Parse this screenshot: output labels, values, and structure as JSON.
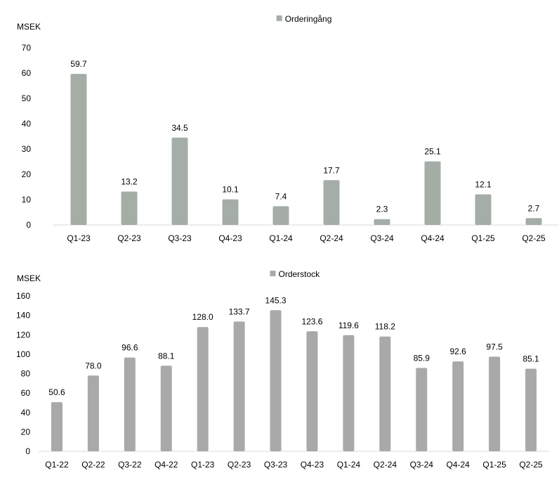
{
  "chart_data": [
    {
      "type": "bar",
      "unit_label": "MSEK",
      "legend": [
        "Orderingång"
      ],
      "legend_position": "top-center",
      "grid": false,
      "categories": [
        "Q1-23",
        "Q2-23",
        "Q3-23",
        "Q4-23",
        "Q1-24",
        "Q2-24",
        "Q3-24",
        "Q4-24",
        "Q1-25",
        "Q2-25"
      ],
      "series": [
        {
          "name": "Orderingång",
          "values": [
            59.7,
            13.2,
            34.5,
            10.1,
            7.4,
            17.7,
            2.3,
            25.1,
            12.1,
            2.7
          ]
        }
      ],
      "data_labels": [
        "59.7",
        "13.2",
        "34.5",
        "10.1",
        "7.4",
        "17.7",
        "2.3",
        "25.1",
        "12.1",
        "2.7"
      ],
      "ylim": [
        0,
        70
      ],
      "yticks": [
        0,
        10,
        20,
        30,
        40,
        50,
        60,
        70
      ],
      "color": "#a5ada7"
    },
    {
      "type": "bar",
      "unit_label": "MSEK",
      "legend": [
        "Orderstock"
      ],
      "legend_position": "top-center",
      "grid": false,
      "categories": [
        "Q1-22",
        "Q2-22",
        "Q3-22",
        "Q4-22",
        "Q1-23",
        "Q2-23",
        "Q3-23",
        "Q4-23",
        "Q1-24",
        "Q2-24",
        "Q3-24",
        "Q4-24",
        "Q1-25",
        "Q2-25"
      ],
      "series": [
        {
          "name": "Orderstock",
          "values": [
            50.6,
            78.0,
            96.6,
            88.1,
            128.0,
            133.7,
            145.3,
            123.6,
            119.6,
            118.2,
            85.9,
            92.6,
            97.5,
            85.1
          ]
        }
      ],
      "data_labels": [
        "50.6",
        "78.0",
        "96.6",
        "88.1",
        "128.0",
        "133.7",
        "145.3",
        "123.6",
        "119.6",
        "118.2",
        "85.9",
        "92.6",
        "97.5",
        "85.1"
      ],
      "ylim": [
        0,
        160
      ],
      "yticks": [
        0,
        20,
        40,
        60,
        80,
        100,
        120,
        140,
        160
      ],
      "color": "#a9a9a9"
    }
  ]
}
